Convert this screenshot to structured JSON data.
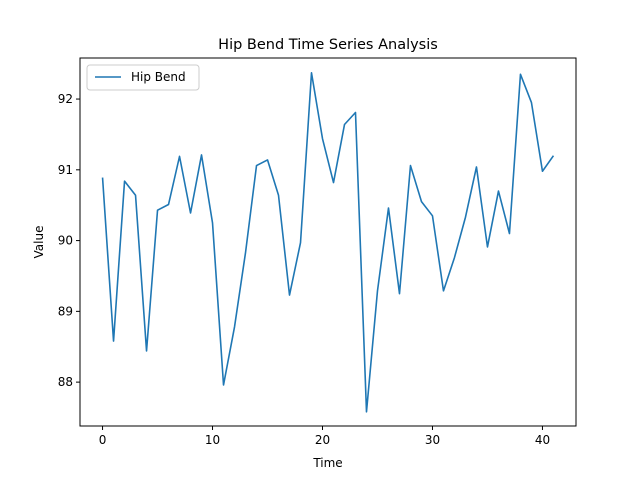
{
  "chart_data": {
    "type": "line",
    "title": "Hip Bend Time Series Analysis",
    "xlabel": "Time",
    "ylabel": "Value",
    "xlim": [
      -2.05,
      43.05
    ],
    "ylim": [
      87.38,
      92.58
    ],
    "xticks": [
      0,
      10,
      20,
      30,
      40
    ],
    "yticks": [
      88,
      89,
      90,
      91,
      92
    ],
    "grid": false,
    "legend": {
      "position": "top-left"
    },
    "series": [
      {
        "name": "Hip Bend",
        "color": "#1f77b4",
        "x": [
          0,
          1,
          2,
          3,
          4,
          5,
          6,
          7,
          8,
          9,
          10,
          11,
          12,
          13,
          14,
          15,
          16,
          17,
          18,
          19,
          20,
          21,
          22,
          23,
          24,
          25,
          26,
          27,
          28,
          29,
          30,
          31,
          32,
          33,
          34,
          35,
          36,
          37,
          38,
          39,
          40,
          41
        ],
        "values": [
          90.89,
          88.58,
          90.84,
          90.64,
          88.44,
          90.43,
          90.51,
          91.19,
          90.39,
          91.21,
          90.25,
          87.96,
          88.78,
          89.83,
          91.06,
          91.14,
          90.64,
          89.23,
          89.97,
          92.37,
          91.44,
          90.82,
          91.64,
          91.81,
          87.58,
          89.29,
          90.46,
          89.25,
          91.06,
          90.55,
          90.35,
          89.29,
          89.76,
          90.33,
          91.04,
          89.91,
          90.7,
          90.1,
          92.35,
          91.95,
          90.98,
          91.2
        ]
      }
    ]
  }
}
